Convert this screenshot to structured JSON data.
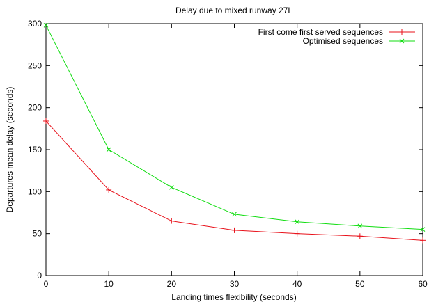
{
  "chart_data": {
    "type": "line",
    "title": "Delay due to mixed runway 27L",
    "xlabel": "Landing times flexibility (seconds)",
    "ylabel": "Departures mean delay (seconds)",
    "x": [
      0,
      10,
      20,
      30,
      40,
      50,
      60
    ],
    "xticks": [
      0,
      10,
      20,
      30,
      40,
      50,
      60
    ],
    "yticks": [
      0,
      50,
      100,
      150,
      200,
      250,
      300
    ],
    "xlim": [
      0,
      60
    ],
    "ylim": [
      0,
      300
    ],
    "grid": false,
    "legend_position": "top-right",
    "series": [
      {
        "name": "First come first served sequences",
        "values": [
          184,
          102,
          65,
          54,
          50,
          47,
          42
        ],
        "color": "#e8111a",
        "marker": "plus"
      },
      {
        "name": "Optimised sequences",
        "values": [
          298,
          150,
          105,
          73,
          64,
          59,
          55
        ],
        "color": "#11dd11",
        "marker": "cross"
      }
    ]
  }
}
